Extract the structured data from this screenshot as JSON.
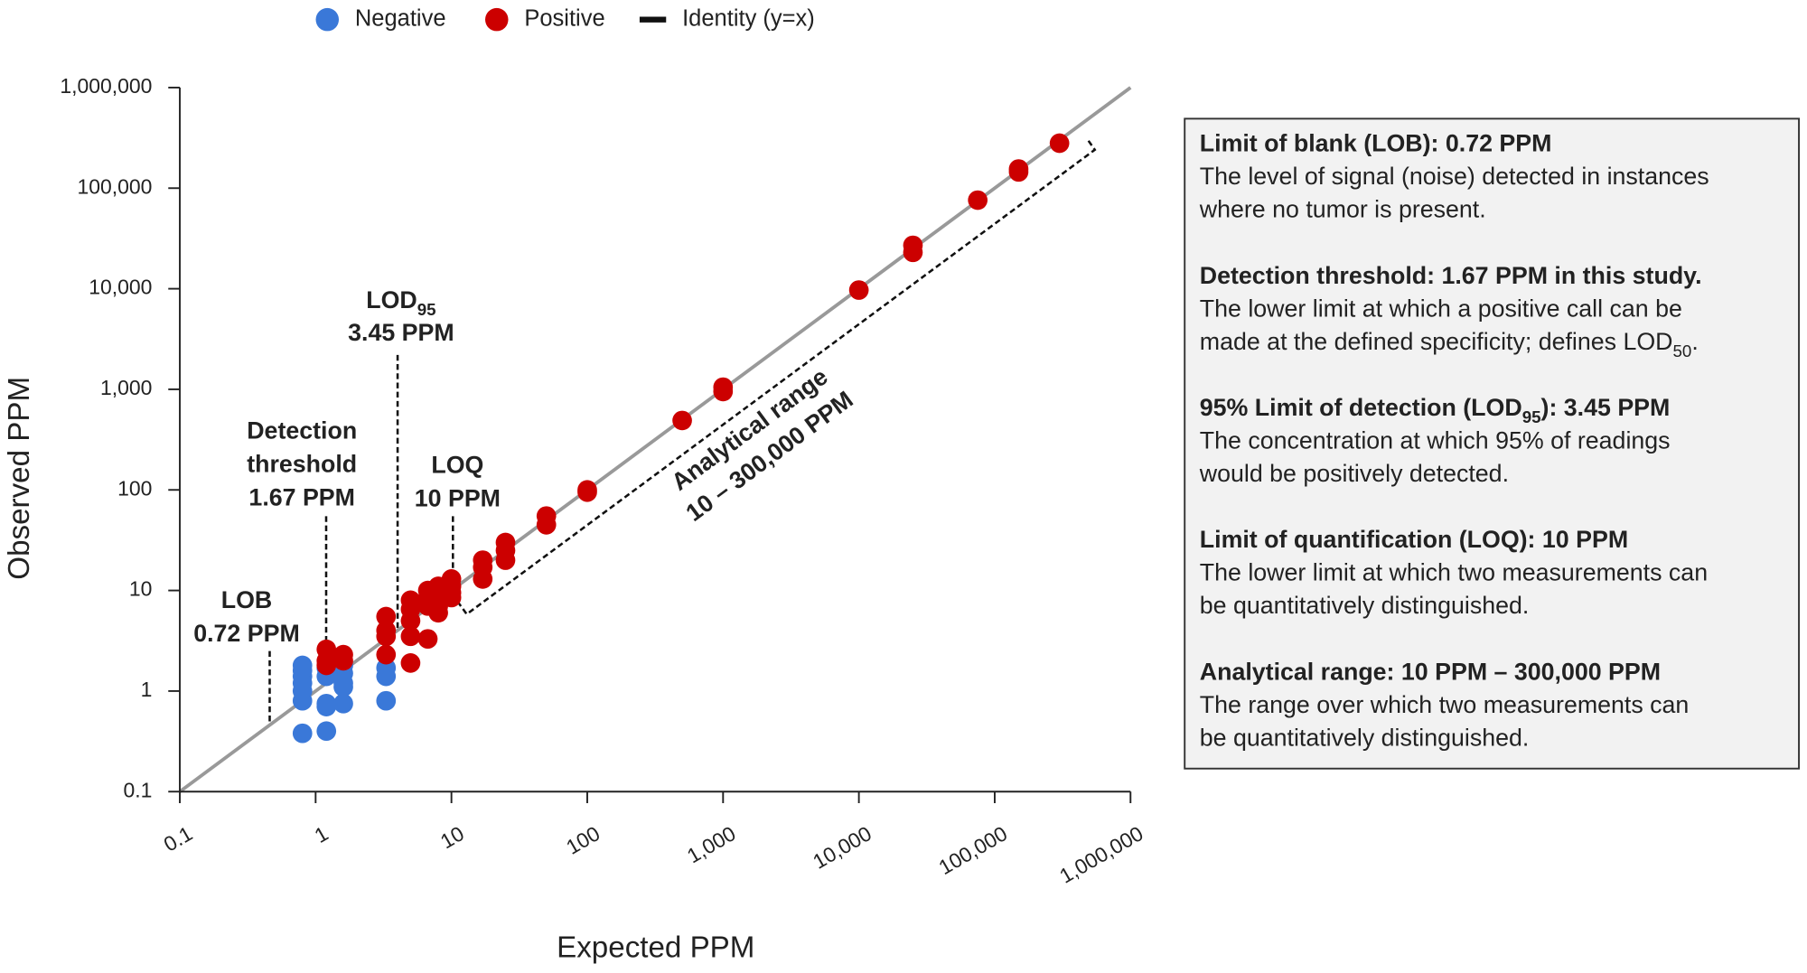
{
  "chart_data": {
    "type": "scatter",
    "log_x": true,
    "log_y": true,
    "xlabel": "Expected PPM",
    "ylabel": "Observed PPM",
    "xlim": [
      0.1,
      1000000
    ],
    "ylim": [
      0.1,
      1000000
    ],
    "xticks": [
      0.1,
      1,
      10,
      100,
      {
        "value": 1000,
        "label": "1,000"
      },
      {
        "value": 10000,
        "label": "10,000"
      },
      {
        "value": 100000,
        "label": "100,000"
      },
      {
        "value": 1000000,
        "label": "1,000,000"
      }
    ],
    "yticks": [
      0.1,
      1,
      10,
      100,
      {
        "value": 1000,
        "label": "1,000"
      },
      {
        "value": 10000,
        "label": "10,000"
      },
      {
        "value": 100000,
        "label": "100,000"
      },
      {
        "value": 1000000,
        "label": "1,000,000"
      }
    ],
    "identity_label": "Identity (y=x)",
    "identity_color": "#999999",
    "series": [
      {
        "name": "Negative",
        "color": "#3a78d8",
        "x": [
          0.8,
          0.8,
          0.8,
          0.8,
          0.8,
          0.8,
          0.8,
          1.2,
          1.2,
          1.2,
          1.2,
          1.2,
          1.6,
          1.6,
          1.6,
          1.6,
          1.6,
          3.3,
          3.3,
          3.3
        ],
        "values": [
          1.8,
          1.6,
          1.4,
          1.2,
          1.0,
          0.8,
          0.38,
          1.7,
          1.4,
          0.75,
          0.7,
          0.4,
          1.8,
          1.5,
          1.2,
          1.1,
          0.75,
          1.7,
          1.4,
          0.8
        ]
      },
      {
        "name": "Positive",
        "color": "#cc0000",
        "x": [
          1.2,
          1.2,
          1.2,
          1.6,
          1.6,
          3.3,
          3.3,
          3.3,
          3.3,
          5,
          5,
          5,
          5,
          5,
          6.7,
          6.7,
          6.7,
          6.7,
          8,
          8,
          8,
          8,
          10,
          10,
          10,
          10,
          17,
          17,
          17,
          25,
          25,
          25,
          50,
          50,
          100,
          100,
          500,
          1000,
          1000,
          10000,
          25000,
          25000,
          75000,
          150000,
          150000,
          300000
        ],
        "values": [
          2.6,
          2.0,
          1.8,
          2.3,
          2.0,
          5.5,
          4,
          3.5,
          2.3,
          8,
          6.5,
          5,
          3.5,
          1.9,
          10,
          8.5,
          7,
          3.3,
          11,
          9,
          7,
          6,
          13,
          11,
          9.5,
          8.5,
          20,
          17,
          13,
          30,
          25,
          20,
          55,
          45,
          100,
          95,
          490,
          1050,
          950,
          9700,
          27000,
          23000,
          76000,
          155000,
          145000,
          280000
        ]
      }
    ],
    "annotations": [
      {
        "lines": [
          [
            "LOB"
          ],
          [
            "0.72 PPM"
          ]
        ]
      },
      {
        "lines": [
          [
            "Detection"
          ],
          [
            "threshold"
          ],
          [
            "1.67 PPM"
          ]
        ]
      },
      {
        "lines": [
          [
            "LOD",
            {
              "sub": "95"
            }
          ],
          [
            "3.45 PPM"
          ]
        ]
      },
      {
        "lines": [
          [
            "LOQ"
          ],
          [
            "10 PPM"
          ]
        ]
      },
      {
        "lines": [
          [
            "Analytical range"
          ],
          [
            "10 – 300,000 PPM"
          ]
        ]
      }
    ]
  },
  "info_box": {
    "sections": [
      {
        "heading": [
          "Limit of blank (LOB):  0.72 PPM"
        ],
        "lines": [
          [
            "The level of signal (noise) detected in instances"
          ],
          [
            "where no tumor is present."
          ]
        ]
      },
      {
        "heading": [
          "Detection threshold:  1.67 PPM in this study."
        ],
        "lines": [
          [
            "The lower limit at which a positive call can be"
          ],
          [
            "made at the defined specificity; defines LOD",
            {
              "sub": "50"
            },
            "."
          ]
        ]
      },
      {
        "heading": [
          "95% Limit of detection (LOD",
          {
            "sub": "95"
          },
          "):  3.45 PPM"
        ],
        "lines": [
          [
            "The concentration at which 95% of readings"
          ],
          [
            "would be positively detected."
          ]
        ]
      },
      {
        "heading": [
          "Limit of quantification (LOQ):  10 PPM"
        ],
        "lines": [
          [
            "The lower limit at which two measurements can"
          ],
          [
            "be quantitatively distinguished."
          ]
        ]
      },
      {
        "heading": [
          "Analytical range:  10 PPM – 300,000 PPM"
        ],
        "lines": [
          [
            "The range over which two measurements can"
          ],
          [
            "be quantitatively distinguished."
          ]
        ]
      }
    ]
  }
}
